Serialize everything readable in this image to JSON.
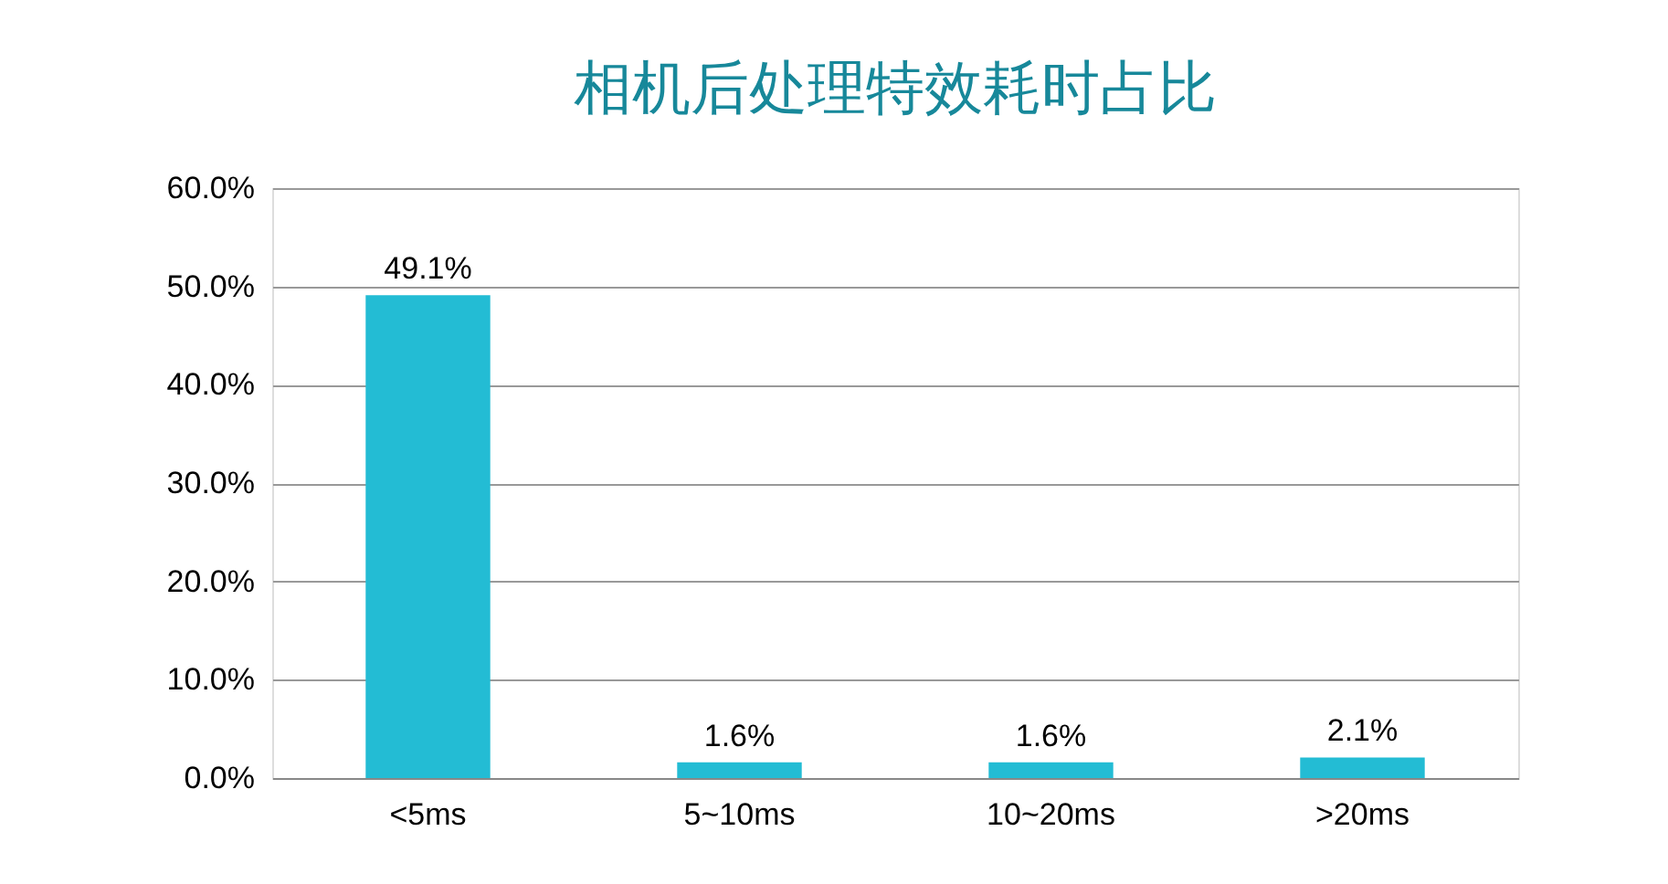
{
  "chart_data": {
    "type": "bar",
    "title": "相机后处理特效耗时占比",
    "categories": [
      "<5ms",
      "5~10ms",
      "10~20ms",
      ">20ms"
    ],
    "values": [
      49.1,
      1.6,
      1.6,
      2.1
    ],
    "value_labels": [
      "49.1%",
      "1.6%",
      "1.6%",
      "2.1%"
    ],
    "color": "#23bcd4",
    "ylim": [
      0,
      60
    ],
    "yticks": [
      {
        "value": 0,
        "label": "0.0%"
      },
      {
        "value": 10,
        "label": "10.0%"
      },
      {
        "value": 20,
        "label": "20.0%"
      },
      {
        "value": 30,
        "label": "30.0%"
      },
      {
        "value": 40,
        "label": "40.0%"
      },
      {
        "value": 50,
        "label": "50.0%"
      },
      {
        "value": 60,
        "label": "60.0%"
      }
    ],
    "grid": "y"
  }
}
